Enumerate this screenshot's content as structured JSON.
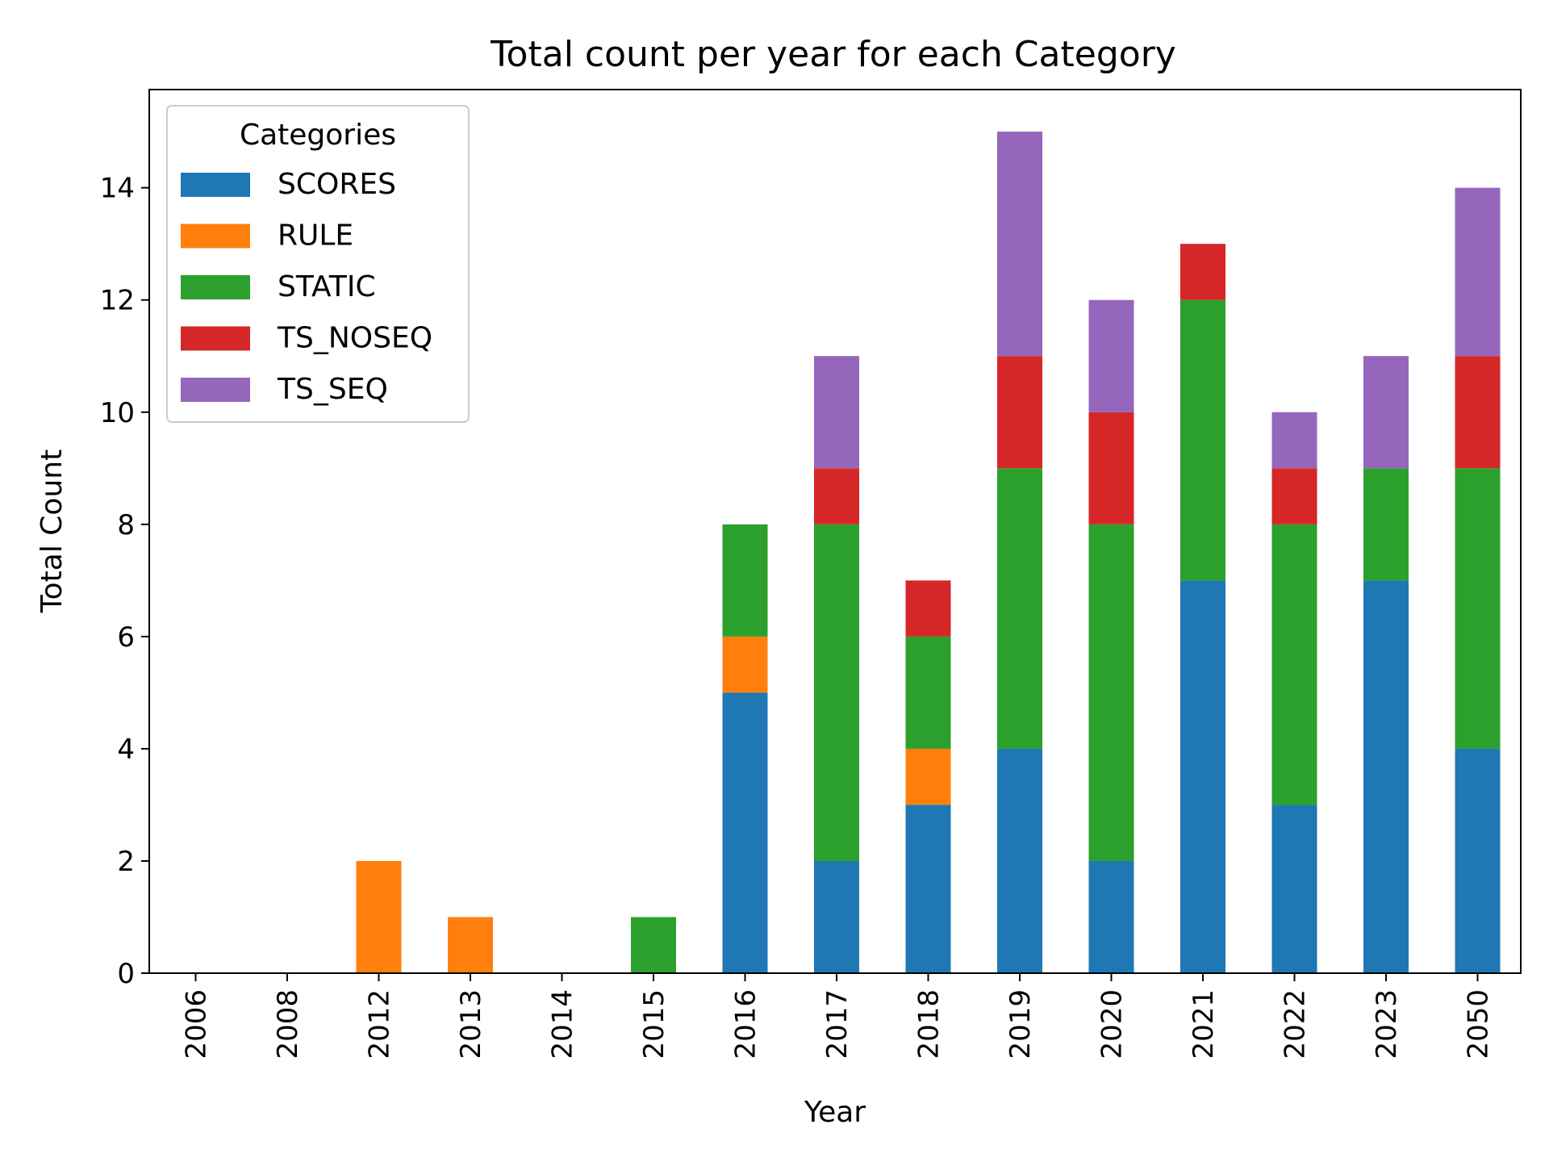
{
  "chart_data": {
    "type": "bar",
    "stacked": true,
    "title": "Total count per year for each Category",
    "xlabel": "Year",
    "ylabel": "Total Count",
    "categories": [
      "2006",
      "2008",
      "2012",
      "2013",
      "2014",
      "2015",
      "2016",
      "2017",
      "2018",
      "2019",
      "2020",
      "2021",
      "2022",
      "2023",
      "2050"
    ],
    "series": [
      {
        "name": "SCORES",
        "color": "#1f77b4",
        "values": [
          0,
          0,
          0,
          0,
          0,
          0,
          5,
          2,
          3,
          4,
          2,
          7,
          3,
          7,
          4
        ]
      },
      {
        "name": "RULE",
        "color": "#ff7f0e",
        "values": [
          0,
          0,
          2,
          1,
          0,
          0,
          1,
          0,
          1,
          0,
          0,
          0,
          0,
          0,
          0
        ]
      },
      {
        "name": "STATIC",
        "color": "#2ca02c",
        "values": [
          0,
          0,
          0,
          0,
          0,
          1,
          2,
          6,
          2,
          5,
          6,
          5,
          5,
          2,
          5
        ]
      },
      {
        "name": "TS_NOSEQ",
        "color": "#d62728",
        "values": [
          0,
          0,
          0,
          0,
          0,
          0,
          0,
          1,
          1,
          2,
          2,
          1,
          1,
          0,
          2
        ]
      },
      {
        "name": "TS_SEQ",
        "color": "#9467bd",
        "values": [
          0,
          0,
          0,
          0,
          0,
          0,
          0,
          2,
          0,
          4,
          2,
          0,
          1,
          2,
          3
        ]
      }
    ],
    "ylim": [
      0,
      15.75
    ],
    "yticks": [
      0,
      2,
      4,
      6,
      8,
      10,
      12,
      14
    ],
    "legend": {
      "title": "Categories",
      "position": "upper-left"
    },
    "grid": false
  }
}
